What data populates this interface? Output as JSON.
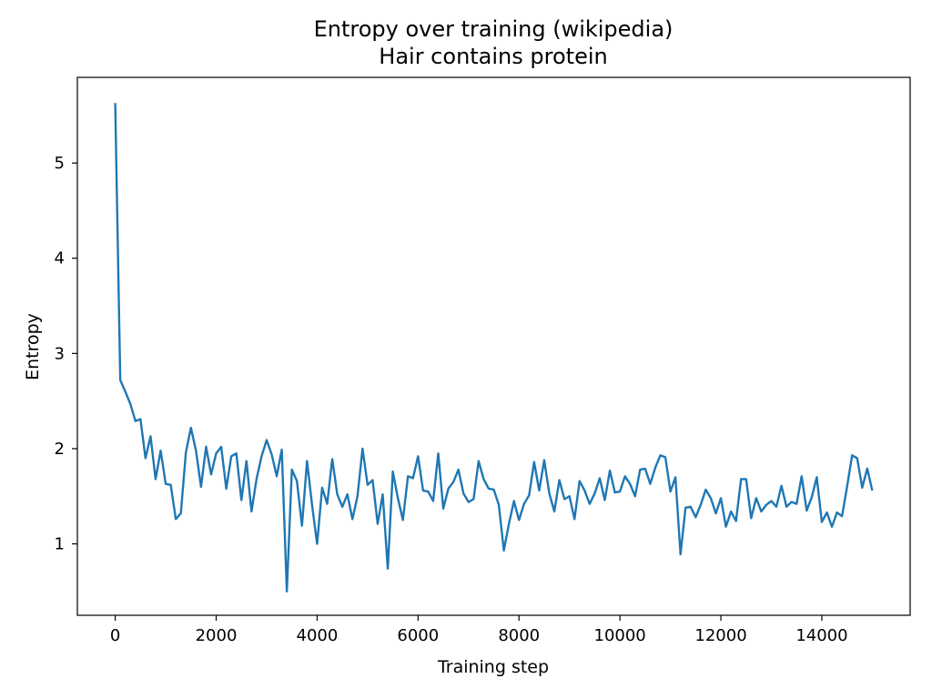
{
  "chart_data": {
    "type": "line",
    "title": "Entropy over training (wikipedia)",
    "subtitle": "Hair contains protein",
    "xlabel": "Training step",
    "ylabel": "Entropy",
    "xlim": [
      -750,
      15750
    ],
    "ylim": [
      0.25,
      5.9
    ],
    "xticks": [
      0,
      2000,
      4000,
      6000,
      8000,
      10000,
      12000,
      14000
    ],
    "yticks": [
      1,
      2,
      3,
      4,
      5
    ],
    "grid": false,
    "series": [
      {
        "color": "#1f77b4",
        "x": [
          0,
          100,
          200,
          300,
          400,
          500,
          600,
          700,
          800,
          900,
          1000,
          1100,
          1200,
          1300,
          1400,
          1500,
          1600,
          1700,
          1800,
          1900,
          2000,
          2100,
          2200,
          2300,
          2400,
          2500,
          2600,
          2700,
          2800,
          2900,
          3000,
          3100,
          3200,
          3300,
          3400,
          3500,
          3600,
          3700,
          3800,
          3900,
          4000,
          4100,
          4200,
          4300,
          4400,
          4500,
          4600,
          4700,
          4800,
          4900,
          5000,
          5100,
          5200,
          5300,
          5400,
          5500,
          5600,
          5700,
          5800,
          5900,
          6000,
          6100,
          6200,
          6300,
          6400,
          6500,
          6600,
          6700,
          6800,
          6900,
          7000,
          7100,
          7200,
          7300,
          7400,
          7500,
          7600,
          7700,
          7800,
          7900,
          8000,
          8100,
          8200,
          8300,
          8400,
          8500,
          8600,
          8700,
          8800,
          8900,
          9000,
          9100,
          9200,
          9300,
          9400,
          9500,
          9600,
          9700,
          9800,
          9900,
          10000,
          10100,
          10200,
          10300,
          10400,
          10500,
          10600,
          10700,
          10800,
          10900,
          11000,
          11100,
          11200,
          11300,
          11400,
          11500,
          11600,
          11700,
          11800,
          11900,
          12000,
          12100,
          12200,
          12300,
          12400,
          12500,
          12600,
          12700,
          12800,
          12900,
          13000,
          13100,
          13200,
          13300,
          13400,
          13500,
          13600,
          13700,
          13800,
          13900,
          14000,
          14100,
          14200,
          14300,
          14400,
          14500,
          14600,
          14700,
          14800,
          14900,
          15000
        ],
        "y": [
          5.63,
          2.72,
          2.6,
          2.47,
          2.29,
          2.31,
          1.9,
          2.13,
          1.68,
          1.98,
          1.63,
          1.62,
          1.26,
          1.32,
          1.96,
          2.22,
          1.98,
          1.6,
          2.02,
          1.73,
          1.95,
          2.02,
          1.58,
          1.92,
          1.95,
          1.46,
          1.87,
          1.34,
          1.68,
          1.92,
          2.09,
          1.94,
          1.71,
          1.99,
          0.5,
          1.78,
          1.66,
          1.19,
          1.87,
          1.41,
          1.0,
          1.59,
          1.42,
          1.89,
          1.52,
          1.39,
          1.52,
          1.26,
          1.5,
          2.0,
          1.62,
          1.67,
          1.21,
          1.52,
          0.74,
          1.76,
          1.48,
          1.25,
          1.71,
          1.69,
          1.92,
          1.56,
          1.55,
          1.45,
          1.95,
          1.37,
          1.58,
          1.65,
          1.78,
          1.53,
          1.44,
          1.47,
          1.87,
          1.68,
          1.58,
          1.57,
          1.41,
          0.93,
          1.21,
          1.45,
          1.25,
          1.42,
          1.51,
          1.86,
          1.56,
          1.88,
          1.53,
          1.34,
          1.67,
          1.47,
          1.5,
          1.26,
          1.66,
          1.56,
          1.42,
          1.53,
          1.69,
          1.46,
          1.77,
          1.54,
          1.55,
          1.71,
          1.63,
          1.5,
          1.78,
          1.79,
          1.63,
          1.8,
          1.93,
          1.91,
          1.55,
          1.7,
          0.89,
          1.38,
          1.39,
          1.28,
          1.41,
          1.57,
          1.48,
          1.32,
          1.48,
          1.18,
          1.34,
          1.24,
          1.68,
          1.68,
          1.27,
          1.48,
          1.34,
          1.41,
          1.45,
          1.39,
          1.61,
          1.39,
          1.44,
          1.42,
          1.71,
          1.35,
          1.49,
          1.7,
          1.23,
          1.33,
          1.18,
          1.33,
          1.29,
          1.6,
          1.93,
          1.9,
          1.59,
          1.79,
          1.56
        ]
      }
    ]
  }
}
